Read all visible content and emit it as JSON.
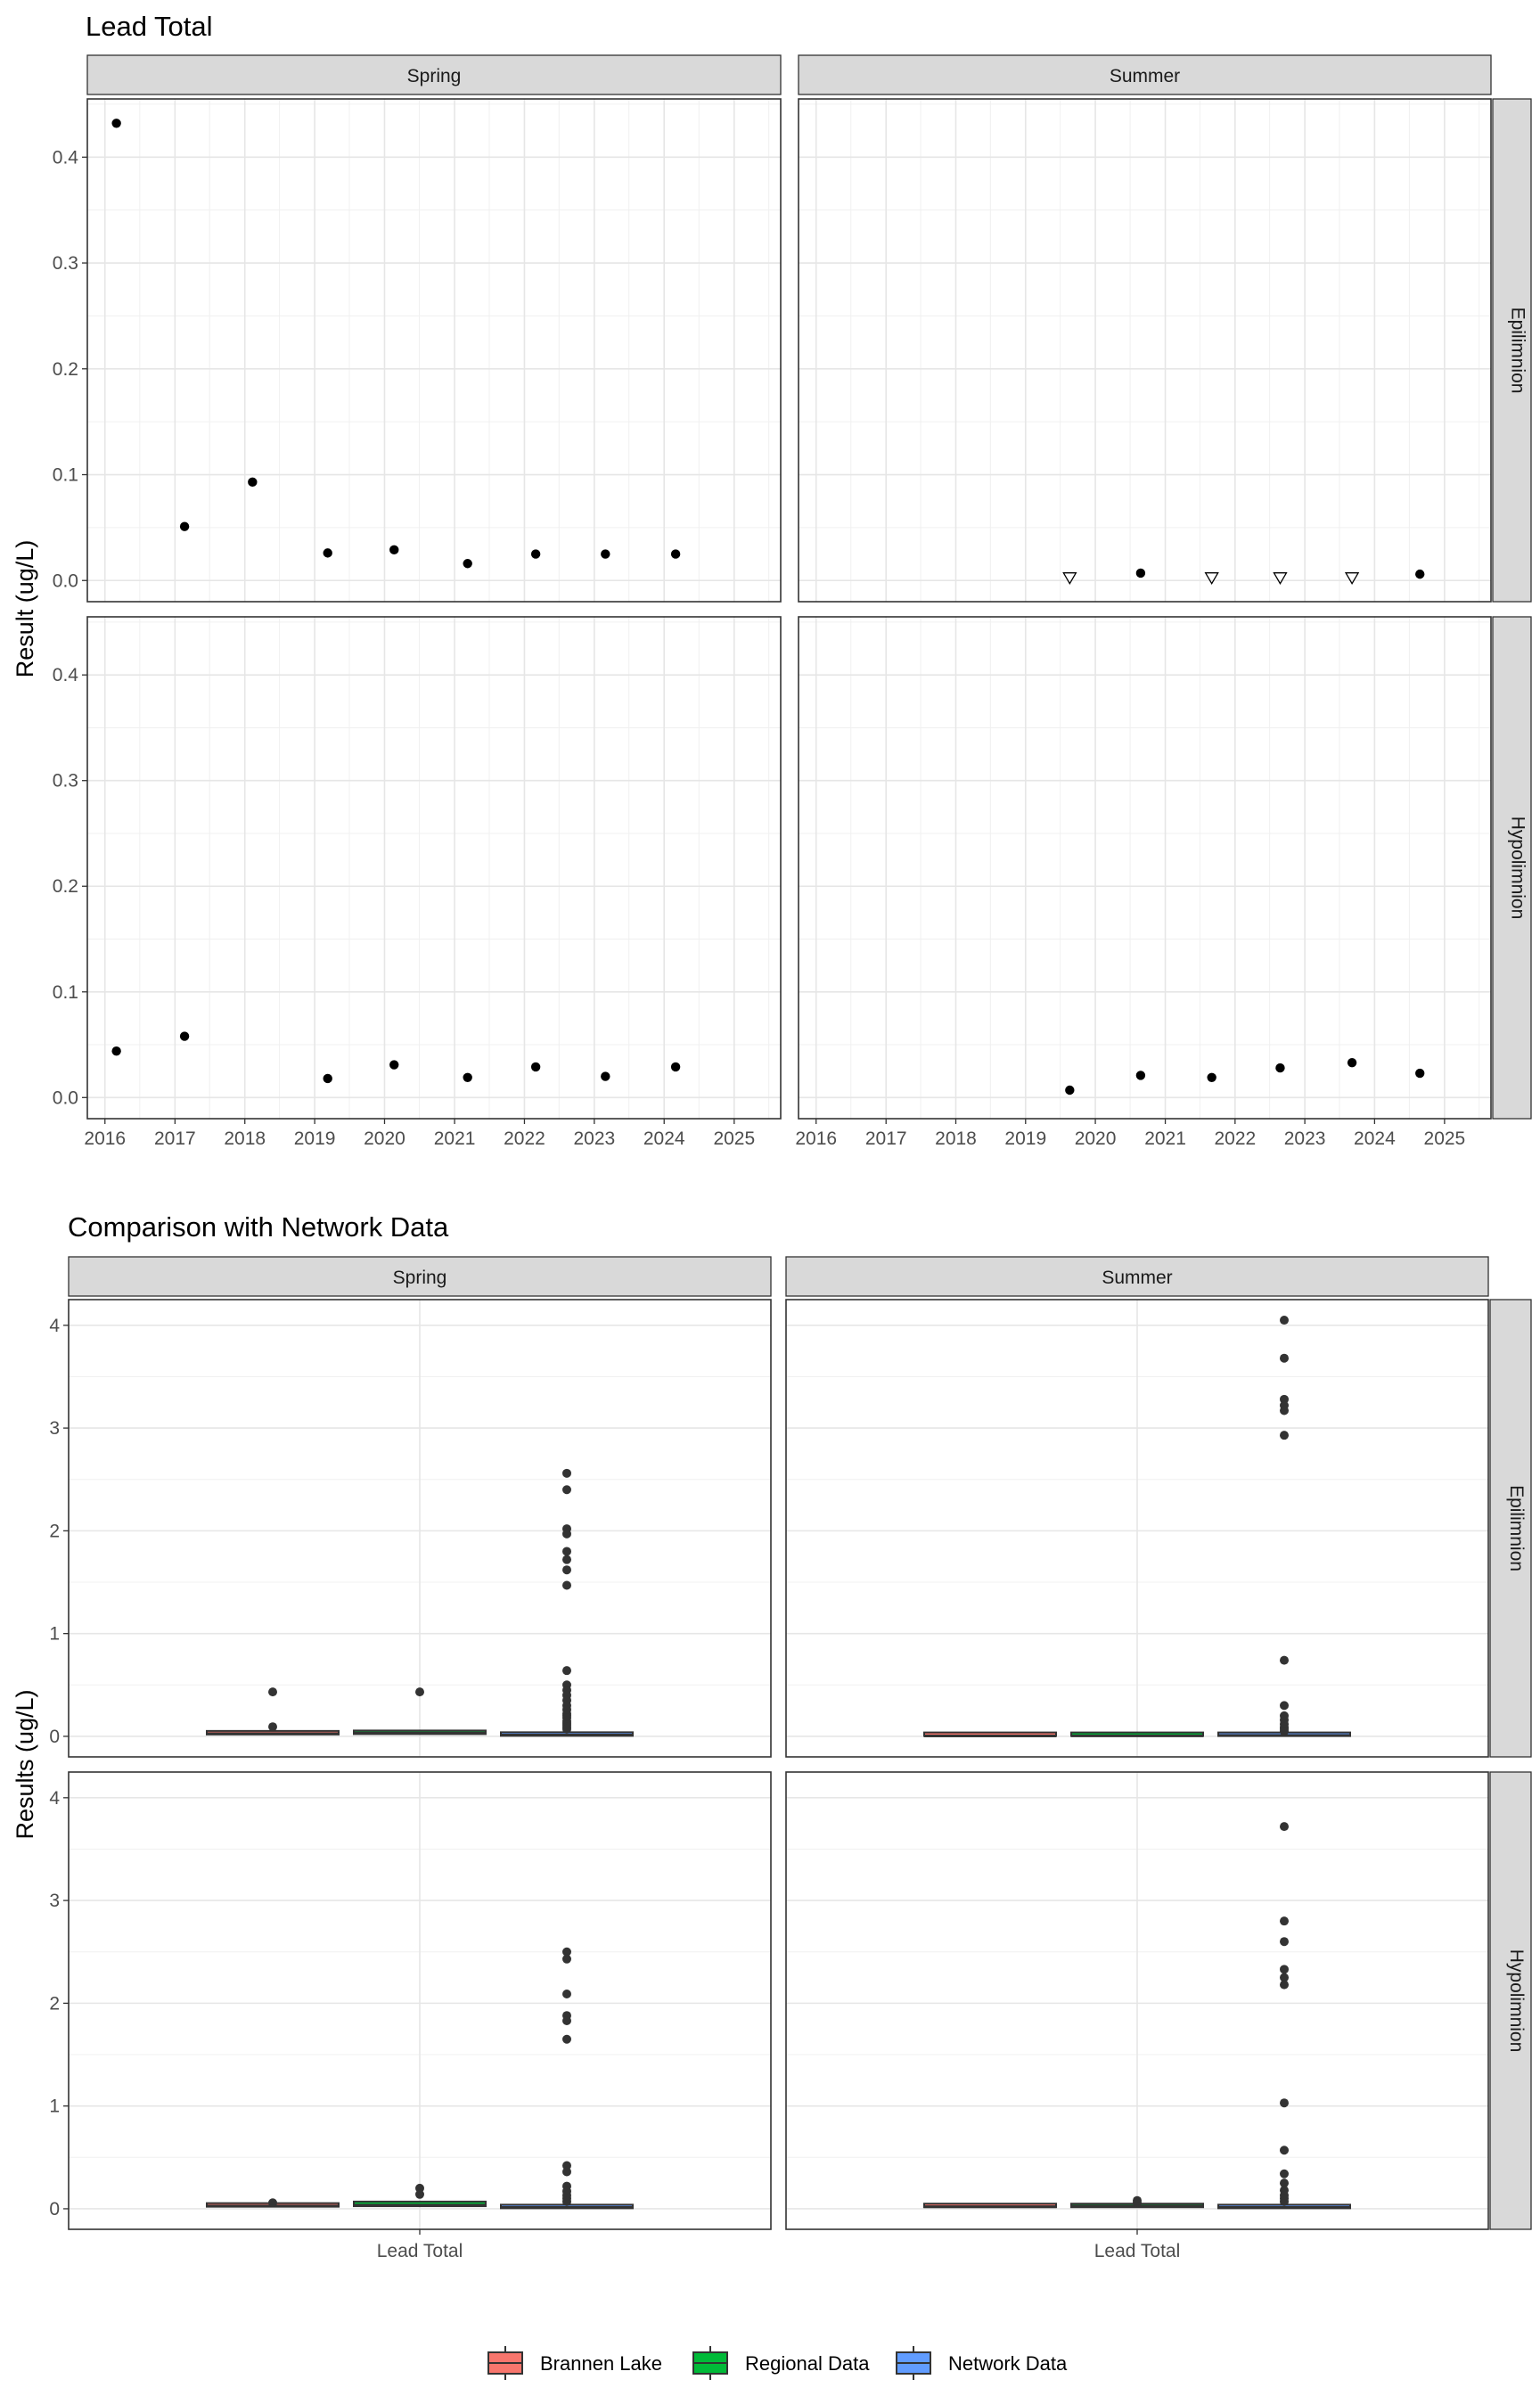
{
  "chart_data": [
    {
      "type": "scatter",
      "title": "Lead Total",
      "ylabel": "Result (ug/L)",
      "xlabel": "",
      "facet_columns": [
        "Spring",
        "Summer"
      ],
      "facet_rows": [
        "Epilimnion",
        "Hypolimnion"
      ],
      "xlim": [
        "2015-10-01",
        "2025-09-01"
      ],
      "x_ticks": [
        "2016",
        "2017",
        "2018",
        "2019",
        "2020",
        "2021",
        "2022",
        "2023",
        "2024",
        "2025"
      ],
      "ylim": [
        -0.02,
        0.455
      ],
      "y_ticks": [
        0.0,
        0.1,
        0.2,
        0.3,
        0.4
      ],
      "y_tick_labels": [
        "0.0",
        "0.1",
        "0.2",
        "0.3",
        "0.4"
      ],
      "grid": true,
      "panels": [
        {
          "column": "Spring",
          "row": "Epilimnion",
          "points": [
            {
              "x": "2016-03-01",
              "y": 0.432
            },
            {
              "x": "2017-02-20",
              "y": 0.051
            },
            {
              "x": "2018-02-10",
              "y": 0.093
            },
            {
              "x": "2019-03-10",
              "y": 0.026
            },
            {
              "x": "2020-02-20",
              "y": 0.029
            },
            {
              "x": "2021-03-10",
              "y": 0.016
            },
            {
              "x": "2022-03-01",
              "y": 0.025
            },
            {
              "x": "2023-02-28",
              "y": 0.025
            },
            {
              "x": "2024-03-01",
              "y": 0.025
            }
          ]
        },
        {
          "column": "Summer",
          "row": "Epilimnion",
          "points": [
            {
              "x": "2019-08-20",
              "y": 0.003,
              "below_detection": true
            },
            {
              "x": "2020-08-25",
              "y": 0.007
            },
            {
              "x": "2021-09-01",
              "y": 0.003,
              "below_detection": true
            },
            {
              "x": "2022-08-25",
              "y": 0.003,
              "below_detection": true
            },
            {
              "x": "2023-09-05",
              "y": 0.003,
              "below_detection": true
            },
            {
              "x": "2024-08-25",
              "y": 0.006
            }
          ]
        },
        {
          "column": "Spring",
          "row": "Hypolimnion",
          "points": [
            {
              "x": "2016-03-01",
              "y": 0.044
            },
            {
              "x": "2017-02-20",
              "y": 0.058
            },
            {
              "x": "2019-03-10",
              "y": 0.018
            },
            {
              "x": "2020-02-20",
              "y": 0.031
            },
            {
              "x": "2021-03-10",
              "y": 0.019
            },
            {
              "x": "2022-03-01",
              "y": 0.029
            },
            {
              "x": "2023-02-28",
              "y": 0.02
            },
            {
              "x": "2024-03-01",
              "y": 0.029
            }
          ]
        },
        {
          "column": "Summer",
          "row": "Hypolimnion",
          "points": [
            {
              "x": "2019-08-20",
              "y": 0.007
            },
            {
              "x": "2020-08-25",
              "y": 0.021
            },
            {
              "x": "2021-09-01",
              "y": 0.019
            },
            {
              "x": "2022-08-25",
              "y": 0.028
            },
            {
              "x": "2023-09-05",
              "y": 0.033
            },
            {
              "x": "2024-08-25",
              "y": 0.023
            }
          ]
        }
      ]
    },
    {
      "type": "box",
      "title": "Comparison with Network Data",
      "ylabel": "Results (ug/L)",
      "xlabel": "",
      "category": "Lead Total",
      "facet_columns": [
        "Spring",
        "Summer"
      ],
      "facet_rows": [
        "Epilimnion",
        "Hypolimnion"
      ],
      "ylim": [
        -0.2,
        4.25
      ],
      "y_ticks": [
        0,
        1,
        2,
        3,
        4
      ],
      "y_tick_labels": [
        "0",
        "1",
        "2",
        "3",
        "4"
      ],
      "grid": true,
      "legend": {
        "position": "bottom",
        "entries": [
          {
            "label": "Brannen Lake",
            "color": "#F8766D"
          },
          {
            "label": "Regional Data",
            "color": "#00BA38"
          },
          {
            "label": "Network Data",
            "color": "#619CFF"
          }
        ]
      },
      "panels": [
        {
          "column": "Spring",
          "row": "Epilimnion",
          "boxes": [
            {
              "series": "Brannen Lake",
              "q1": 0.018,
              "median": 0.025,
              "q3": 0.031,
              "outliers": [
                0.432,
                0.093
              ]
            },
            {
              "series": "Regional Data",
              "q1": 0.022,
              "median": 0.032,
              "q3": 0.048,
              "outliers": [
                0.432
              ]
            },
            {
              "series": "Network Data",
              "q1": 0.005,
              "median": 0.012,
              "q3": 0.028,
              "outliers": [
                2.56,
                2.4,
                2.02,
                1.97,
                1.8,
                1.72,
                1.62,
                1.47,
                0.64,
                0.5,
                0.45,
                0.4,
                0.35,
                0.3,
                0.26,
                0.22,
                0.2,
                0.18,
                0.15,
                0.13,
                0.11,
                0.09,
                0.07
              ]
            }
          ]
        },
        {
          "column": "Summer",
          "row": "Epilimnion",
          "boxes": [
            {
              "series": "Brannen Lake",
              "q1": 0.003,
              "median": 0.004,
              "q3": 0.006,
              "outliers": []
            },
            {
              "series": "Regional Data",
              "q1": 0.003,
              "median": 0.005,
              "q3": 0.009,
              "outliers": []
            },
            {
              "series": "Network Data",
              "q1": 0.003,
              "median": 0.008,
              "q3": 0.02,
              "outliers": [
                4.05,
                3.68,
                3.28,
                3.22,
                3.17,
                2.93,
                0.74,
                0.3,
                0.2,
                0.16,
                0.12,
                0.09,
                0.07,
                0.05
              ]
            }
          ]
        },
        {
          "column": "Spring",
          "row": "Hypolimnion",
          "boxes": [
            {
              "series": "Brannen Lake",
              "q1": 0.02,
              "median": 0.027,
              "q3": 0.032,
              "outliers": [
                0.058
              ]
            },
            {
              "series": "Regional Data",
              "q1": 0.025,
              "median": 0.035,
              "q3": 0.07,
              "outliers": [
                0.2,
                0.14
              ]
            },
            {
              "series": "Network Data",
              "q1": 0.005,
              "median": 0.012,
              "q3": 0.03,
              "outliers": [
                2.5,
                2.43,
                2.09,
                1.88,
                1.83,
                1.65,
                0.42,
                0.36,
                0.22,
                0.17,
                0.13,
                0.1,
                0.07
              ]
            }
          ]
        },
        {
          "column": "Summer",
          "row": "Hypolimnion",
          "boxes": [
            {
              "series": "Brannen Lake",
              "q1": 0.015,
              "median": 0.02,
              "q3": 0.026,
              "outliers": []
            },
            {
              "series": "Regional Data",
              "q1": 0.015,
              "median": 0.025,
              "q3": 0.04,
              "outliers": [
                0.08,
                0.06
              ]
            },
            {
              "series": "Network Data",
              "q1": 0.005,
              "median": 0.012,
              "q3": 0.03,
              "outliers": [
                3.72,
                2.8,
                2.6,
                2.33,
                2.25,
                2.18,
                1.03,
                0.57,
                0.34,
                0.25,
                0.18,
                0.13,
                0.1,
                0.07
              ]
            }
          ]
        }
      ]
    }
  ]
}
